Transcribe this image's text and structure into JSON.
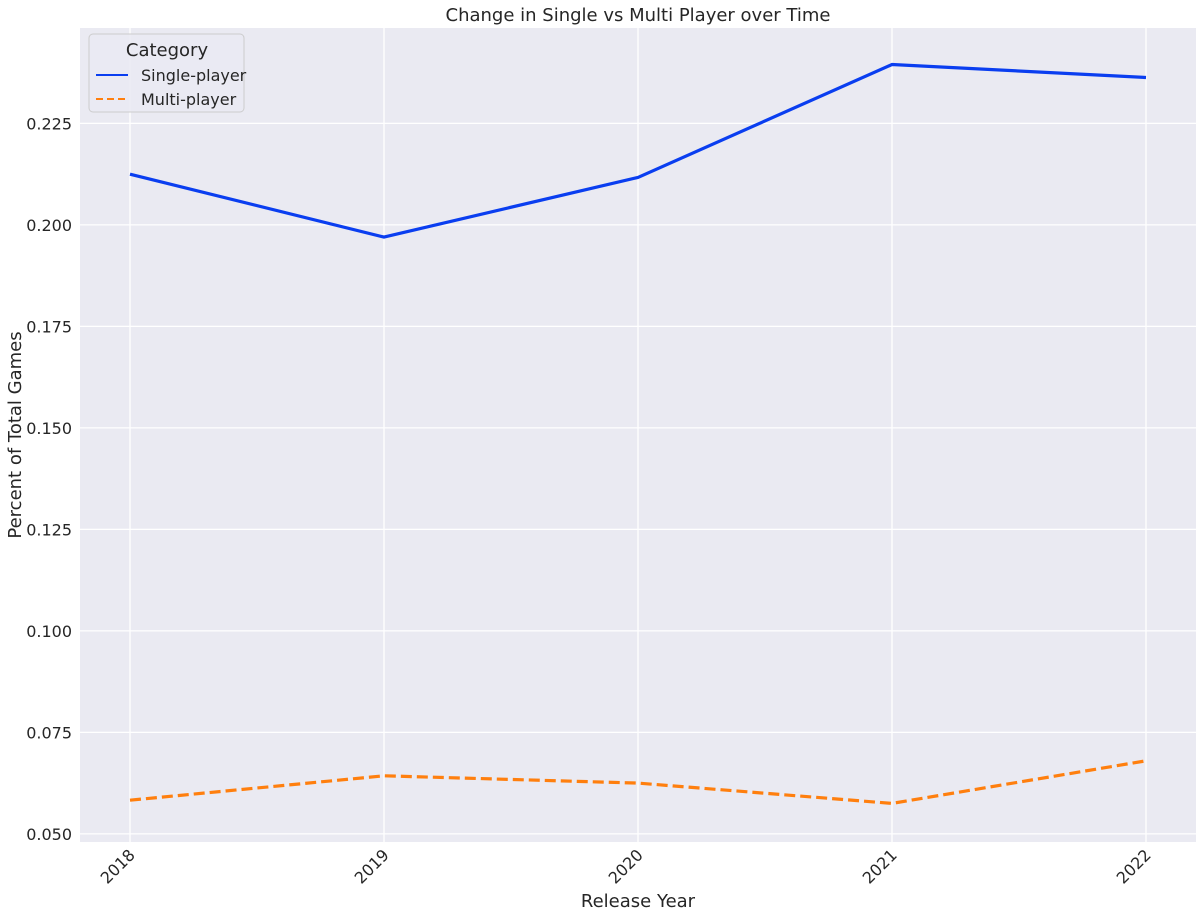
{
  "chart_data": {
    "type": "line",
    "title": "Change in Single vs Multi Player over Time",
    "xlabel": "Release Year",
    "ylabel": "Percent of Total Games",
    "x": [
      "2018",
      "2019",
      "2020",
      "2021",
      "2022"
    ],
    "y_ticks": [
      "0.050",
      "0.075",
      "0.100",
      "0.125",
      "0.150",
      "0.175",
      "0.200",
      "0.225"
    ],
    "ylim": [
      0.048,
      0.2485
    ],
    "grid": true,
    "legend": {
      "title": "Category",
      "placement": "top-left"
    },
    "series": [
      {
        "name": "Single-player",
        "values": [
          0.2125,
          0.197,
          0.2117,
          0.2395,
          0.2363
        ],
        "color": "#0a3ef0",
        "dash": "solid"
      },
      {
        "name": "Multi-player",
        "values": [
          0.0583,
          0.0643,
          0.0625,
          0.0575,
          0.068
        ],
        "color": "#ff7f0e",
        "dash": "dashed"
      }
    ]
  }
}
